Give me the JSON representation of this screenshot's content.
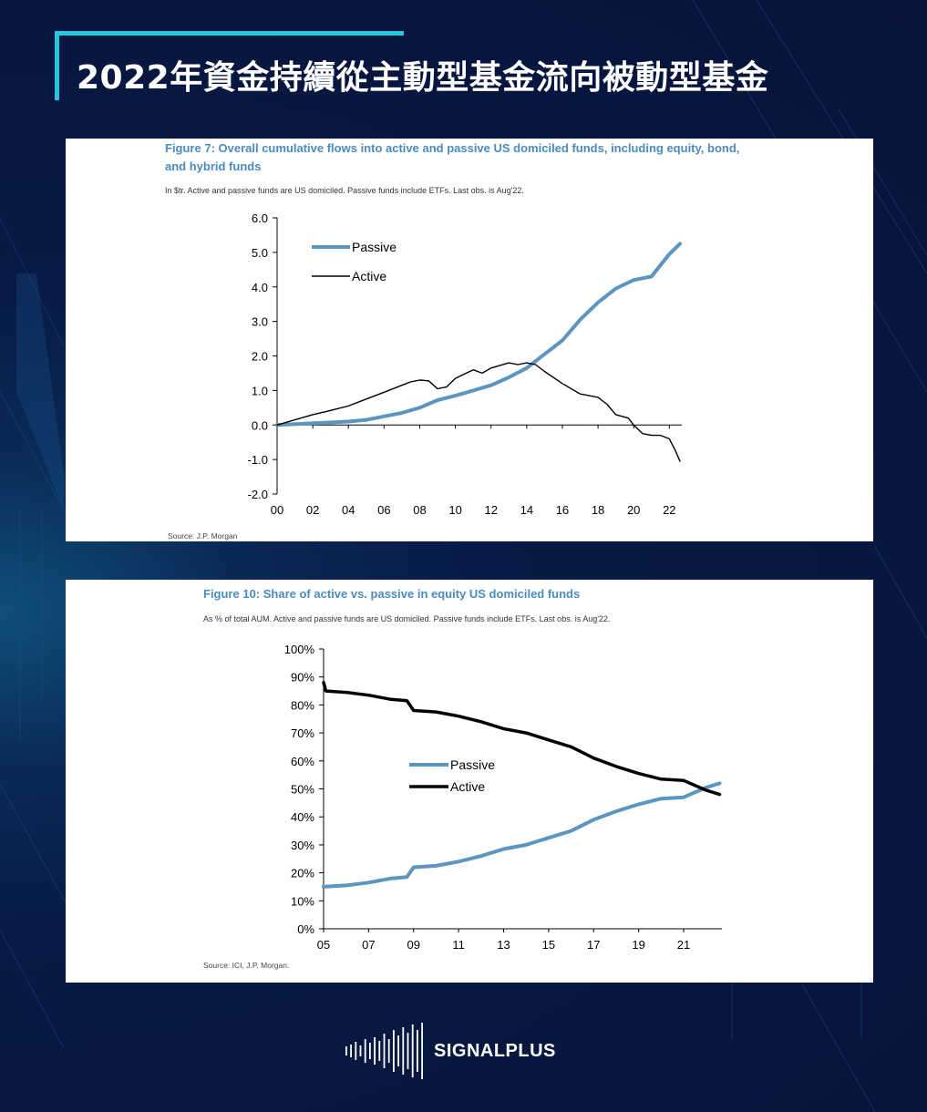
{
  "title": "2022年資金持續從主動型基金流向被動型基金",
  "brand": {
    "name": "SIGNALPLUS",
    "logo_icon": "signal-waveform-icon"
  },
  "colors": {
    "background": "#07133a",
    "accent": "#25c6e0",
    "passive": "#5b95c0",
    "active": "#000000",
    "figure_title": "#4a8bbf"
  },
  "figures": [
    {
      "title_line1": "Figure 7: Overall cumulative flows into active and passive US domiciled funds, including equity, bond,",
      "title_line2": "and hybrid funds",
      "subtitle": "In $tr. Active and passive funds are US domiciled. Passive funds include ETFs. Last obs. is Aug'22.",
      "source": "Source: J.P. Morgan"
    },
    {
      "title_line1": "Figure 10: Share of active vs. passive in equity US domiciled funds",
      "subtitle": "As % of total AUM. Active and passive funds are US domiciled. Passive funds include ETFs. Last obs. is Aug'22.",
      "source": "Source: ICI, J.P. Morgan."
    }
  ],
  "chart_data": [
    {
      "type": "line",
      "ylim": [
        -2.0,
        6.0
      ],
      "xlim": [
        2000,
        2022.7
      ],
      "y_ticks": [
        "6.0",
        "5.0",
        "4.0",
        "3.0",
        "2.0",
        "1.0",
        "0.0",
        "-1.0",
        "-2.0"
      ],
      "x_ticks": [
        "00",
        "02",
        "04",
        "06",
        "08",
        "10",
        "12",
        "14",
        "16",
        "18",
        "20",
        "22"
      ],
      "legend_position": "top-left",
      "grid": false,
      "series": [
        {
          "name": "Passive",
          "color": "#5b95c0",
          "x": [
            2000,
            2002,
            2004,
            2005,
            2006,
            2007,
            2008,
            2009,
            2010,
            2011,
            2012,
            2013,
            2014,
            2015,
            2016,
            2017,
            2018,
            2019,
            2020,
            2021,
            2022,
            2022.6
          ],
          "y": [
            0.0,
            0.05,
            0.1,
            0.15,
            0.25,
            0.35,
            0.5,
            0.72,
            0.85,
            1.0,
            1.15,
            1.38,
            1.65,
            2.05,
            2.45,
            3.05,
            3.55,
            3.95,
            4.2,
            4.3,
            4.95,
            5.25
          ]
        },
        {
          "name": "Active",
          "color": "#000000",
          "x": [
            2000,
            2001,
            2002,
            2003,
            2004,
            2005,
            2006,
            2007,
            2007.5,
            2008,
            2008.5,
            2009,
            2009.5,
            2010,
            2011,
            2011.5,
            2012,
            2013,
            2013.5,
            2014,
            2014.5,
            2015,
            2016,
            2017,
            2018,
            2018.5,
            2019,
            2019.7,
            2020,
            2020.5,
            2021,
            2021.5,
            2022,
            2022.3,
            2022.6
          ],
          "y": [
            0.0,
            0.15,
            0.3,
            0.42,
            0.55,
            0.75,
            0.95,
            1.15,
            1.25,
            1.3,
            1.28,
            1.05,
            1.1,
            1.35,
            1.6,
            1.5,
            1.65,
            1.8,
            1.75,
            1.8,
            1.75,
            1.55,
            1.2,
            0.9,
            0.8,
            0.6,
            0.3,
            0.2,
            0.0,
            -0.25,
            -0.3,
            -0.3,
            -0.4,
            -0.7,
            -1.05
          ]
        }
      ]
    },
    {
      "type": "line",
      "ylim": [
        0,
        100
      ],
      "xlim": [
        2005,
        2022.7
      ],
      "y_ticks": [
        "100%",
        "90%",
        "80%",
        "70%",
        "60%",
        "50%",
        "40%",
        "30%",
        "20%",
        "10%",
        "0%"
      ],
      "x_ticks": [
        "05",
        "07",
        "09",
        "11",
        "13",
        "15",
        "17",
        "19",
        "21"
      ],
      "legend_position": "center",
      "grid": false,
      "series": [
        {
          "name": "Passive",
          "color": "#5b95c0",
          "x": [
            2005,
            2006,
            2007,
            2008,
            2008.7,
            2009,
            2010,
            2011,
            2012,
            2013,
            2014,
            2015,
            2016,
            2017,
            2018,
            2019,
            2020,
            2021,
            2022,
            2022.6
          ],
          "y": [
            15,
            15.5,
            16.5,
            18,
            18.5,
            22,
            22.5,
            24,
            26,
            28.5,
            30,
            32.5,
            35,
            39,
            42,
            44.5,
            46.5,
            47,
            50.5,
            52
          ]
        },
        {
          "name": "Active",
          "color": "#000000",
          "x": [
            2005,
            2005.1,
            2006,
            2007,
            2008,
            2008.7,
            2009,
            2010,
            2011,
            2012,
            2013,
            2014,
            2015,
            2016,
            2017,
            2018,
            2019,
            2020,
            2021,
            2022,
            2022.6
          ],
          "y": [
            88,
            85,
            84.5,
            83.5,
            82,
            81.5,
            78,
            77.5,
            76,
            74,
            71.5,
            70,
            67.5,
            65,
            61,
            58,
            55.5,
            53.5,
            53,
            49.5,
            48
          ]
        }
      ]
    }
  ]
}
